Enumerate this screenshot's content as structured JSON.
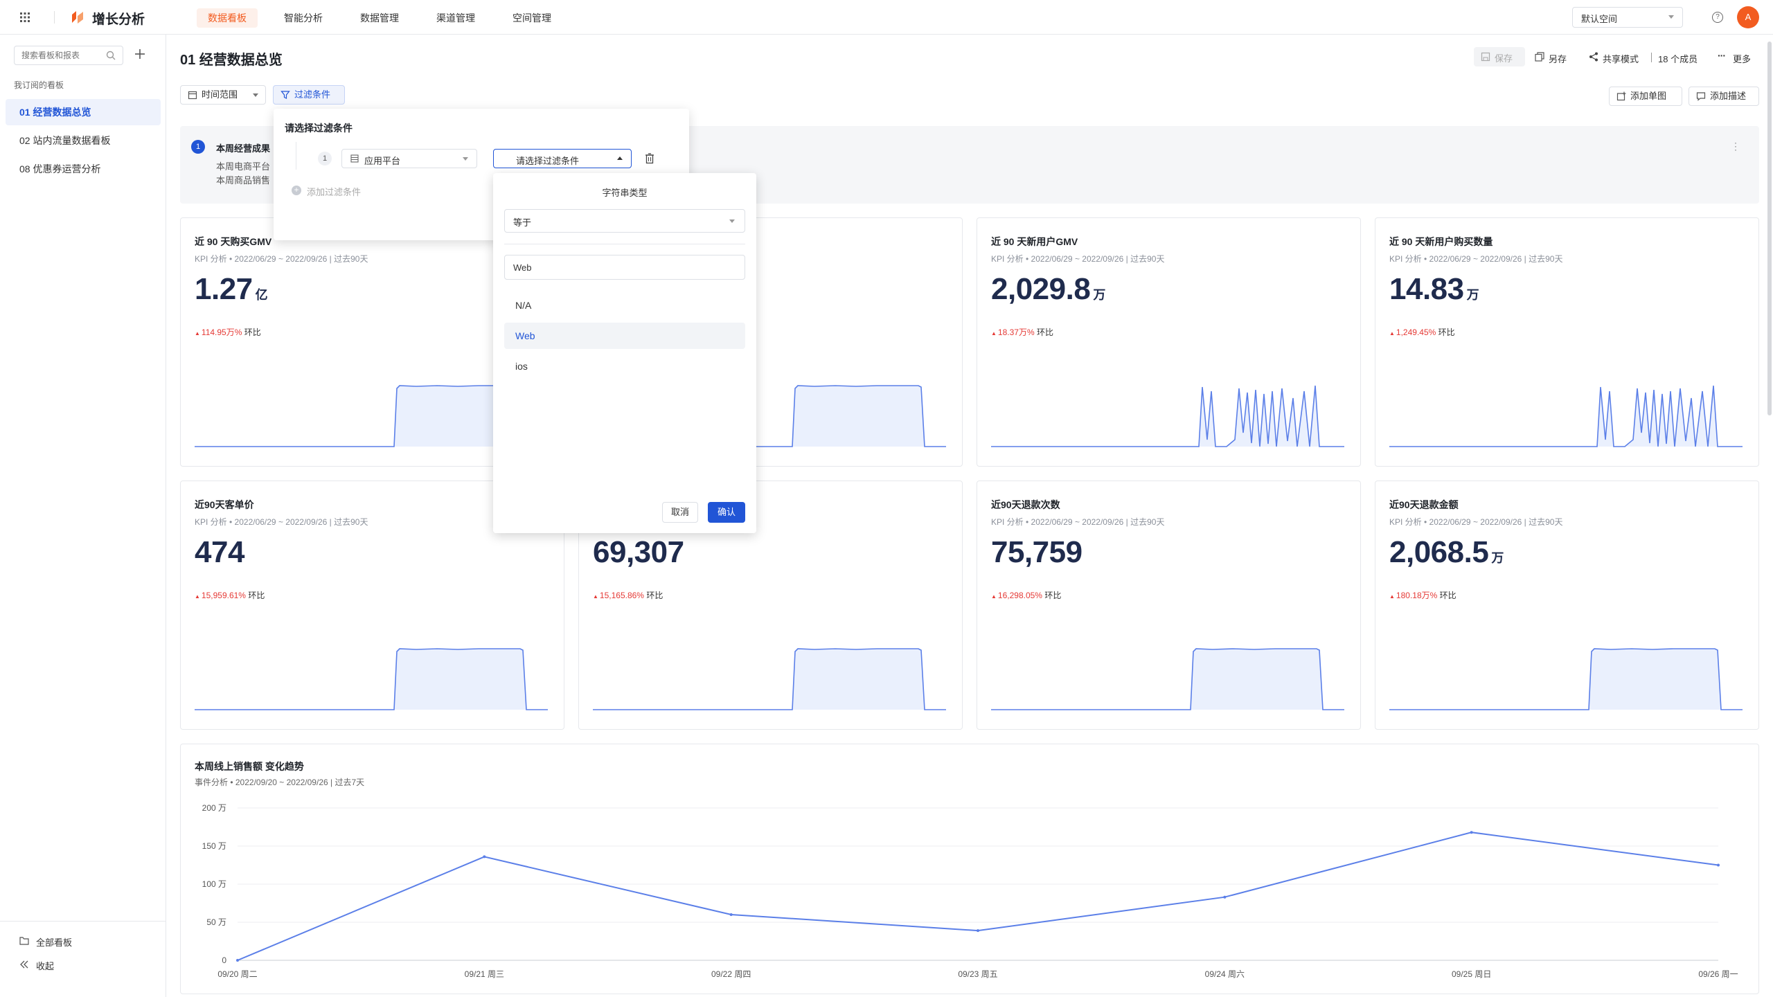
{
  "topbar": {
    "app_name": "增长分析",
    "nav": [
      "数据看板",
      "智能分析",
      "数据管理",
      "渠道管理",
      "空间管理"
    ],
    "space": "默认空间",
    "avatar": "A",
    "accent": "#f25c20"
  },
  "sidebar": {
    "search_placeholder": "搜索看板和报表",
    "section_label": "我订阅的看板",
    "items": [
      "01 经营数据总览",
      "02 站内流量数据看板",
      "08 优惠券运营分析"
    ],
    "footer": {
      "all_boards": "全部看板",
      "collapse": "收起"
    }
  },
  "page": {
    "title": "01 经营数据总览",
    "actions": {
      "save": "保存",
      "save_as": "另存",
      "share": "共享模式",
      "members": "18 个成员",
      "more": "更多"
    },
    "toolbar": {
      "time_range": "时间范围",
      "filter": "过滤条件",
      "add_chart": "添加单图",
      "add_desc": "添加描述"
    }
  },
  "notice": {
    "index": "1",
    "title": "本周经营成果",
    "line1": "本周电商平台",
    "line2": "本周商品销售"
  },
  "filter_popover": {
    "title": "请选择过滤条件",
    "row_index": "1",
    "field": "应用平台",
    "condition_placeholder": "请选择过滤条件",
    "add_condition": "添加过滤条件"
  },
  "value_popover": {
    "type_label": "字符串类型",
    "operator": "等于",
    "search_value": "Web",
    "options": [
      "N/A",
      "Web",
      "ios"
    ],
    "selected": "Web",
    "cancel": "取消",
    "confirm": "确认"
  },
  "kpi_cards": [
    {
      "title": "近 90 天购买GMV",
      "sub": "KPI 分析 • 2022/06/29 ~ 2022/09/26 | 过去90天",
      "value": "1.27",
      "unit": "亿",
      "change": "114.95万%",
      "change_label": "环比",
      "shape": "plateau"
    },
    {
      "title": "",
      "sub": "90天",
      "value": "",
      "unit": "",
      "change": "",
      "change_label": "",
      "shape": "plateau"
    },
    {
      "title": "近 90 天新用户GMV",
      "sub": "KPI 分析 • 2022/06/29 ~ 2022/09/26 | 过去90天",
      "value": "2,029.8",
      "unit": "万",
      "change": "18.37万%",
      "change_label": "环比",
      "shape": "spiky"
    },
    {
      "title": "近 90 天新用户购买数量",
      "sub": "KPI 分析 • 2022/06/29 ~ 2022/09/26 | 过去90天",
      "value": "14.83",
      "unit": "万",
      "change": "1,249.45%",
      "change_label": "环比",
      "shape": "spiky"
    },
    {
      "title": "近90天客单价",
      "sub": "KPI 分析 • 2022/06/29 ~ 2022/09/26 | 过去90天",
      "value": "474",
      "unit": "",
      "change": "15,959.61%",
      "change_label": "环比",
      "shape": "plateau"
    },
    {
      "title": "",
      "sub": "90天",
      "value": "69,307",
      "unit": "",
      "change": "15,165.86%",
      "change_label": "环比",
      "shape": "plateau"
    },
    {
      "title": "近90天退款次数",
      "sub": "KPI 分析 • 2022/06/29 ~ 2022/09/26 | 过去90天",
      "value": "75,759",
      "unit": "",
      "change": "16,298.05%",
      "change_label": "环比",
      "shape": "plateau"
    },
    {
      "title": "近90天退款金额",
      "sub": "KPI 分析 • 2022/06/29 ~ 2022/09/26 | 过去90天",
      "value": "2,068.5",
      "unit": "万",
      "change": "180.18万%",
      "change_label": "环比",
      "shape": "plateau"
    }
  ],
  "chart_data": {
    "type": "line",
    "title": "本周线上销售额 变化趋势",
    "subtitle": "事件分析 • 2022/09/20 ~ 2022/09/26 | 过去7天",
    "categories": [
      "09/20 周二",
      "09/21 周三",
      "09/22 周四",
      "09/23 周五",
      "09/24 周六",
      "09/25 周日",
      "09/26 周一"
    ],
    "y_ticks": [
      "0",
      "50 万",
      "100 万",
      "150 万",
      "200 万"
    ],
    "ylim": [
      0,
      200
    ],
    "series": [
      {
        "values": [
          0,
          136,
          60,
          39,
          83,
          168,
          125
        ]
      }
    ],
    "grid": true,
    "color": "#5b7fe8"
  }
}
